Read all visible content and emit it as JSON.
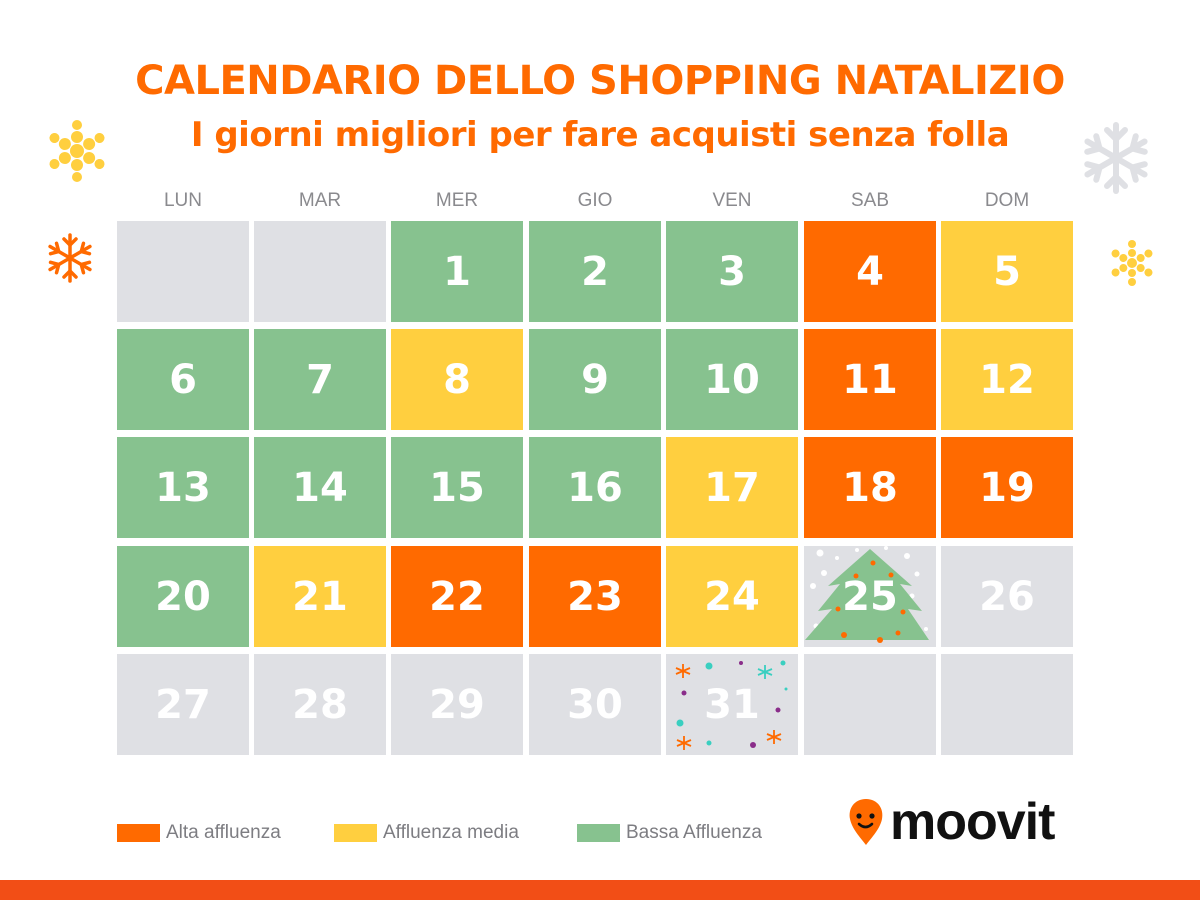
{
  "title": "CALENDARIO DELLO SHOPPING NATALIZIO",
  "subtitle": "I giorni migliori per fare acquisti senza folla",
  "weekdays": [
    "LUN",
    "MAR",
    "MER",
    "GIO",
    "VEN",
    "SAB",
    "DOM"
  ],
  "colors": {
    "alta": "#FF6A00",
    "media": "#FFCF3F",
    "bassa": "#87C28F",
    "none": "#DFE0E4",
    "title": "#FF6A00",
    "bar": "#F24E16"
  },
  "days": [
    {
      "d": "",
      "c": "none"
    },
    {
      "d": "",
      "c": "none"
    },
    {
      "d": "1",
      "c": "bassa"
    },
    {
      "d": "2",
      "c": "bassa"
    },
    {
      "d": "3",
      "c": "bassa"
    },
    {
      "d": "4",
      "c": "alta"
    },
    {
      "d": "5",
      "c": "media"
    },
    {
      "d": "6",
      "c": "bassa"
    },
    {
      "d": "7",
      "c": "bassa"
    },
    {
      "d": "8",
      "c": "media"
    },
    {
      "d": "9",
      "c": "bassa"
    },
    {
      "d": "10",
      "c": "bassa"
    },
    {
      "d": "11",
      "c": "alta"
    },
    {
      "d": "12",
      "c": "media"
    },
    {
      "d": "13",
      "c": "bassa"
    },
    {
      "d": "14",
      "c": "bassa"
    },
    {
      "d": "15",
      "c": "bassa"
    },
    {
      "d": "16",
      "c": "bassa"
    },
    {
      "d": "17",
      "c": "media"
    },
    {
      "d": "18",
      "c": "alta"
    },
    {
      "d": "19",
      "c": "alta"
    },
    {
      "d": "20",
      "c": "bassa"
    },
    {
      "d": "21",
      "c": "media"
    },
    {
      "d": "22",
      "c": "alta"
    },
    {
      "d": "23",
      "c": "alta"
    },
    {
      "d": "24",
      "c": "media"
    },
    {
      "d": "25",
      "c": "none",
      "icon": "christmas-tree-icon"
    },
    {
      "d": "26",
      "c": "none"
    },
    {
      "d": "27",
      "c": "none"
    },
    {
      "d": "28",
      "c": "none"
    },
    {
      "d": "29",
      "c": "none"
    },
    {
      "d": "30",
      "c": "none"
    },
    {
      "d": "31",
      "c": "none",
      "icon": "confetti-icon"
    },
    {
      "d": "",
      "c": "none"
    },
    {
      "d": "",
      "c": "none"
    }
  ],
  "legend": [
    {
      "label": "Alta affluenza",
      "c": "alta"
    },
    {
      "label": "Affluenza media",
      "c": "media"
    },
    {
      "label": "Bassa Affluenza",
      "c": "bassa"
    }
  ],
  "logo": "moovit"
}
